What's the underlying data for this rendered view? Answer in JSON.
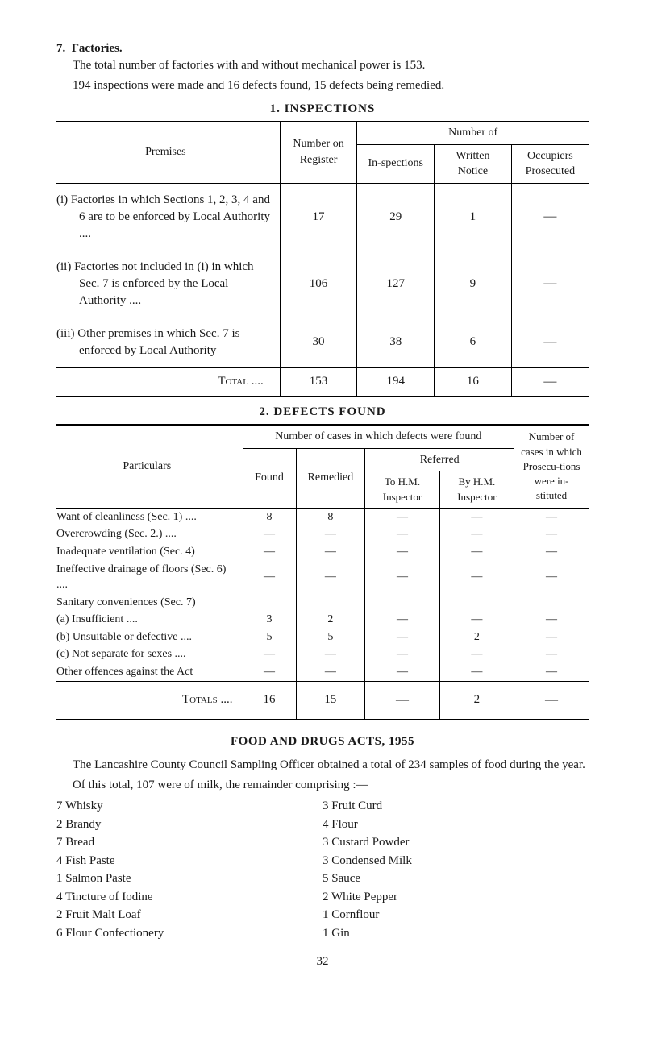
{
  "section": {
    "number": "7.",
    "title": "Factories.",
    "para1": "The total number of factories with and without mechanical power is 153.",
    "para2": "194 inspections were made and 16 defects found, 15 defects being remedied."
  },
  "table1": {
    "title": "1. INSPECTIONS",
    "headers": {
      "premises": "Premises",
      "number_on_register": "Number on Register",
      "number_of": "Number of",
      "inspections": "In-spections",
      "written_notice": "Written Notice",
      "occupiers_prosecuted": "Occupiers Prosecuted"
    },
    "rows": [
      {
        "label": "(i) Factories in which Sections 1, 2, 3, 4 and 6 are to be enforced by Local Authority ....",
        "register": "17",
        "inspections": "29",
        "written": "1",
        "prosecuted": "—"
      },
      {
        "label": "(ii) Factories not included in (i) in which Sec. 7 is enforced by the Local Authority ....",
        "register": "106",
        "inspections": "127",
        "written": "9",
        "prosecuted": "—"
      },
      {
        "label": "(iii) Other premises in which Sec. 7 is enforced by Local Authority",
        "register": "30",
        "inspections": "38",
        "written": "6",
        "prosecuted": "—"
      }
    ],
    "total": {
      "label": "Total ....",
      "register": "153",
      "inspections": "194",
      "written": "16",
      "prosecuted": "—"
    }
  },
  "table2": {
    "title": "2. DEFECTS FOUND",
    "headers": {
      "particulars": "Particulars",
      "cases_found": "Number of cases in which defects were found",
      "found": "Found",
      "remedied": "Remedied",
      "referred": "Referred",
      "to_hm": "To H.M. Inspector",
      "by_hm": "By H.M. Inspector",
      "prosecutions": "Number of cases in which Prosecu-tions were in-stituted"
    },
    "rows": [
      {
        "label": "Want of cleanliness (Sec. 1) ....",
        "found": "8",
        "remedied": "8",
        "to_hm": "—",
        "by_hm": "—",
        "prosec": "—"
      },
      {
        "label": "Overcrowding (Sec. 2.) ....",
        "found": "—",
        "remedied": "—",
        "to_hm": "—",
        "by_hm": "—",
        "prosec": "—"
      },
      {
        "label": "Inadequate ventilation (Sec. 4)",
        "found": "—",
        "remedied": "—",
        "to_hm": "—",
        "by_hm": "—",
        "prosec": "—"
      },
      {
        "label": "Ineffective drainage of floors (Sec. 6) ....",
        "found": "—",
        "remedied": "—",
        "to_hm": "—",
        "by_hm": "—",
        "prosec": "—"
      },
      {
        "label": "Sanitary conveniences (Sec. 7)",
        "found": "",
        "remedied": "",
        "to_hm": "",
        "by_hm": "",
        "prosec": ""
      },
      {
        "label": "(a) Insufficient ....",
        "found": "3",
        "remedied": "2",
        "to_hm": "—",
        "by_hm": "—",
        "prosec": "—",
        "indent": true
      },
      {
        "label": "(b) Unsuitable or defective ....",
        "found": "5",
        "remedied": "5",
        "to_hm": "—",
        "by_hm": "2",
        "prosec": "—",
        "indent": true
      },
      {
        "label": "(c) Not separate for sexes ....",
        "found": "—",
        "remedied": "—",
        "to_hm": "—",
        "by_hm": "—",
        "prosec": "—",
        "indent": true
      },
      {
        "label": "Other offences against the Act",
        "found": "—",
        "remedied": "—",
        "to_hm": "—",
        "by_hm": "—",
        "prosec": "—"
      }
    ],
    "total": {
      "label": "Totals ....",
      "found": "16",
      "remedied": "15",
      "to_hm": "—",
      "by_hm": "2",
      "prosec": "—"
    }
  },
  "food": {
    "title": "FOOD AND DRUGS ACTS, 1955",
    "para1": "The Lancashire County Council Sampling Officer obtained a total of 234 samples of food during the year.",
    "para2": "Of this total, 107 were of milk, the remainder comprising :—",
    "left": [
      "7 Whisky",
      "2 Brandy",
      "7 Bread",
      "4 Fish Paste",
      "1 Salmon Paste",
      "4 Tincture of Iodine",
      "2 Fruit Malt Loaf",
      "6 Flour Confectionery"
    ],
    "right": [
      "3 Fruit Curd",
      "4 Flour",
      "3 Custard Powder",
      "3 Condensed Milk",
      "5 Sauce",
      "2 White Pepper",
      "1 Cornflour",
      "1 Gin"
    ]
  },
  "page_number": "32"
}
